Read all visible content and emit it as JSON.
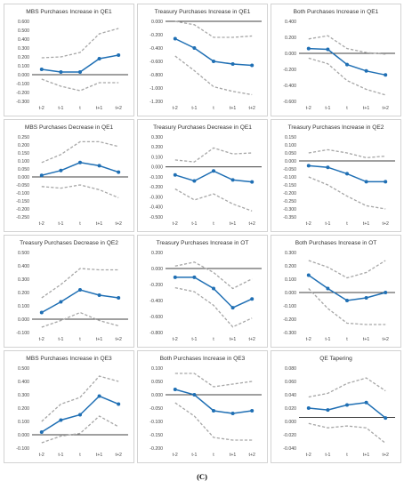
{
  "figure": {
    "caption": "(C)"
  },
  "style": {
    "series_color": "#1f6fb4",
    "band_color": "#a6a6a6",
    "frame_color": "#c8c8c8"
  },
  "chart_data": [
    {
      "type": "line",
      "title": "MBS Purchases Increase in QE1",
      "x": [
        "t-2",
        "t-1",
        "t",
        "t+1",
        "t+2"
      ],
      "ylim": [
        -0.3,
        0.6
      ],
      "yticks": [
        "0.600",
        "0.500",
        "0.400",
        "0.300",
        "0.200",
        "0.100",
        "0.000",
        "-0.100",
        "-0.200",
        "-0.300"
      ],
      "series": [
        {
          "role": "estimate",
          "values": [
            0.06,
            0.03,
            0.03,
            0.18,
            0.22
          ]
        },
        {
          "role": "upper",
          "values": [
            0.19,
            0.2,
            0.25,
            0.46,
            0.52
          ]
        },
        {
          "role": "lower",
          "values": [
            -0.05,
            -0.13,
            -0.18,
            -0.09,
            -0.09
          ]
        }
      ]
    },
    {
      "type": "line",
      "title": "Treasury Purchases Increase in QE1",
      "x": [
        "t-2",
        "t-1",
        "t",
        "t+1",
        "t+2"
      ],
      "ylim": [
        -1.2,
        0.0
      ],
      "yticks": [
        "0.000",
        "-0.200",
        "-0.400",
        "-0.600",
        "-0.800",
        "-1.000",
        "-1.200"
      ],
      "series": [
        {
          "role": "estimate",
          "values": [
            -0.26,
            -0.4,
            -0.6,
            -0.64,
            -0.66
          ]
        },
        {
          "role": "upper",
          "values": [
            0.0,
            -0.05,
            -0.24,
            -0.24,
            -0.22
          ]
        },
        {
          "role": "lower",
          "values": [
            -0.52,
            -0.74,
            -0.98,
            -1.05,
            -1.1
          ]
        }
      ]
    },
    {
      "type": "line",
      "title": "Both Purchases Increase in QE1",
      "x": [
        "t-2",
        "t-1",
        "t",
        "t+1",
        "t+2"
      ],
      "ylim": [
        -0.6,
        0.4
      ],
      "yticks": [
        "0.400",
        "0.200",
        "0.000",
        "-0.200",
        "-0.400",
        "-0.600"
      ],
      "series": [
        {
          "role": "estimate",
          "values": [
            0.06,
            0.05,
            -0.14,
            -0.22,
            -0.27
          ]
        },
        {
          "role": "upper",
          "values": [
            0.18,
            0.22,
            0.06,
            0.01,
            -0.01
          ]
        },
        {
          "role": "lower",
          "values": [
            -0.06,
            -0.13,
            -0.34,
            -0.45,
            -0.52
          ]
        }
      ]
    },
    {
      "type": "line",
      "title": "MBS Purchases Decrease in QE1",
      "x": [
        "t-2",
        "t-1",
        "t",
        "t+1",
        "t+2"
      ],
      "ylim": [
        -0.25,
        0.25
      ],
      "yticks": [
        "0.250",
        "0.200",
        "0.150",
        "0.100",
        "0.050",
        "0.000",
        "-0.050",
        "-0.100",
        "-0.150",
        "-0.200",
        "-0.250"
      ],
      "series": [
        {
          "role": "estimate",
          "values": [
            0.01,
            0.04,
            0.09,
            0.07,
            0.03
          ]
        },
        {
          "role": "upper",
          "values": [
            0.09,
            0.14,
            0.22,
            0.22,
            0.19
          ]
        },
        {
          "role": "lower",
          "values": [
            -0.06,
            -0.07,
            -0.05,
            -0.08,
            -0.13
          ]
        }
      ]
    },
    {
      "type": "line",
      "title": "Treasury Purchases Decrease in QE1",
      "x": [
        "t-2",
        "t-1",
        "t",
        "t+1",
        "t+2"
      ],
      "ylim": [
        -0.5,
        0.3
      ],
      "yticks": [
        "0.300",
        "0.200",
        "0.100",
        "0.000",
        "-0.100",
        "-0.200",
        "-0.300",
        "-0.400",
        "-0.500"
      ],
      "series": [
        {
          "role": "estimate",
          "values": [
            -0.08,
            -0.14,
            -0.04,
            -0.13,
            -0.15
          ]
        },
        {
          "role": "upper",
          "values": [
            0.07,
            0.05,
            0.19,
            0.13,
            0.14
          ]
        },
        {
          "role": "lower",
          "values": [
            -0.22,
            -0.33,
            -0.27,
            -0.37,
            -0.44
          ]
        }
      ]
    },
    {
      "type": "line",
      "title": "Treasury Purchases Increase in QE2",
      "x": [
        "t-2",
        "t-1",
        "t",
        "t+1",
        "t+2"
      ],
      "ylim": [
        -0.35,
        0.15
      ],
      "yticks": [
        "0.150",
        "0.100",
        "0.050",
        "0.000",
        "-0.050",
        "-0.100",
        "-0.150",
        "-0.200",
        "-0.250",
        "-0.300",
        "-0.350"
      ],
      "series": [
        {
          "role": "estimate",
          "values": [
            -0.03,
            -0.04,
            -0.08,
            -0.13,
            -0.13
          ]
        },
        {
          "role": "upper",
          "values": [
            0.05,
            0.07,
            0.05,
            0.02,
            0.03
          ]
        },
        {
          "role": "lower",
          "values": [
            -0.1,
            -0.15,
            -0.22,
            -0.28,
            -0.3
          ]
        }
      ]
    },
    {
      "type": "line",
      "title": "Treasury Purchases Decrease in QE2",
      "x": [
        "t-2",
        "t-1",
        "t",
        "t+1",
        "t+2"
      ],
      "ylim": [
        -0.1,
        0.5
      ],
      "yticks": [
        "0.500",
        "0.400",
        "0.300",
        "0.200",
        "0.100",
        "0.000",
        "-0.100"
      ],
      "series": [
        {
          "role": "estimate",
          "values": [
            0.05,
            0.13,
            0.22,
            0.18,
            0.16
          ]
        },
        {
          "role": "upper",
          "values": [
            0.16,
            0.26,
            0.38,
            0.37,
            0.37
          ]
        },
        {
          "role": "lower",
          "values": [
            -0.06,
            -0.01,
            0.05,
            -0.01,
            -0.05
          ]
        }
      ]
    },
    {
      "type": "line",
      "title": "Treasury Purchases Increase in OT",
      "x": [
        "t-2",
        "t-1",
        "t",
        "t+1",
        "t+2"
      ],
      "ylim": [
        -0.8,
        0.2
      ],
      "yticks": [
        "0.200",
        "0.000",
        "-0.200",
        "-0.400",
        "-0.600",
        "-0.800"
      ],
      "series": [
        {
          "role": "estimate",
          "values": [
            -0.11,
            -0.11,
            -0.25,
            -0.49,
            -0.38
          ]
        },
        {
          "role": "upper",
          "values": [
            0.03,
            0.08,
            -0.05,
            -0.25,
            -0.13
          ]
        },
        {
          "role": "lower",
          "values": [
            -0.24,
            -0.29,
            -0.46,
            -0.73,
            -0.62
          ]
        }
      ]
    },
    {
      "type": "line",
      "title": "Both Purchases Increase in OT",
      "x": [
        "t-2",
        "t-1",
        "t",
        "t+1",
        "t+2"
      ],
      "ylim": [
        -0.3,
        0.3
      ],
      "yticks": [
        "0.300",
        "0.200",
        "0.100",
        "0.000",
        "-0.100",
        "-0.200",
        "-0.300"
      ],
      "series": [
        {
          "role": "estimate",
          "values": [
            0.13,
            0.03,
            -0.06,
            -0.04,
            0.0
          ]
        },
        {
          "role": "upper",
          "values": [
            0.24,
            0.19,
            0.11,
            0.15,
            0.24
          ]
        },
        {
          "role": "lower",
          "values": [
            0.03,
            -0.12,
            -0.23,
            -0.24,
            -0.24
          ]
        }
      ]
    },
    {
      "type": "line",
      "title": "MBS Purchases Increase in QE3",
      "x": [
        "t-2",
        "t-1",
        "t",
        "t+1",
        "t+2"
      ],
      "ylim": [
        -0.1,
        0.5
      ],
      "yticks": [
        "0.500",
        "0.400",
        "0.300",
        "0.200",
        "0.100",
        "0.000",
        "-0.100"
      ],
      "series": [
        {
          "role": "estimate",
          "values": [
            0.02,
            0.11,
            0.15,
            0.29,
            0.23
          ]
        },
        {
          "role": "upper",
          "values": [
            0.1,
            0.23,
            0.28,
            0.44,
            0.4
          ]
        },
        {
          "role": "lower",
          "values": [
            -0.06,
            -0.01,
            0.01,
            0.14,
            0.06
          ]
        }
      ]
    },
    {
      "type": "line",
      "title": "Both Purchases Increase in QE3",
      "x": [
        "t-2",
        "t-1",
        "t",
        "t+1",
        "t+2"
      ],
      "ylim": [
        -0.2,
        0.1
      ],
      "yticks": [
        "0.100",
        "0.050",
        "0.000",
        "-0.050",
        "-0.100",
        "-0.150",
        "-0.200"
      ],
      "series": [
        {
          "role": "estimate",
          "values": [
            0.02,
            0.0,
            -0.06,
            -0.07,
            -0.06
          ]
        },
        {
          "role": "upper",
          "values": [
            0.08,
            0.08,
            0.03,
            0.04,
            0.05
          ]
        },
        {
          "role": "lower",
          "values": [
            -0.03,
            -0.08,
            -0.16,
            -0.17,
            -0.17
          ]
        }
      ]
    },
    {
      "type": "line",
      "title": "QE Tapering",
      "x": [
        "t-2",
        "t-1",
        "t",
        "t+1",
        "t+2"
      ],
      "ylim": [
        -0.05,
        0.08
      ],
      "yticks": [
        "0.080",
        "0.060",
        "0.040",
        "0.020",
        "0.000",
        "-0.020",
        "-0.040"
      ],
      "series": [
        {
          "role": "estimate",
          "values": [
            0.015,
            0.012,
            0.02,
            0.024,
            -0.001
          ]
        },
        {
          "role": "upper",
          "values": [
            0.033,
            0.039,
            0.055,
            0.064,
            0.043
          ]
        },
        {
          "role": "lower",
          "values": [
            -0.01,
            -0.017,
            -0.014,
            -0.017,
            -0.042
          ]
        }
      ]
    }
  ]
}
